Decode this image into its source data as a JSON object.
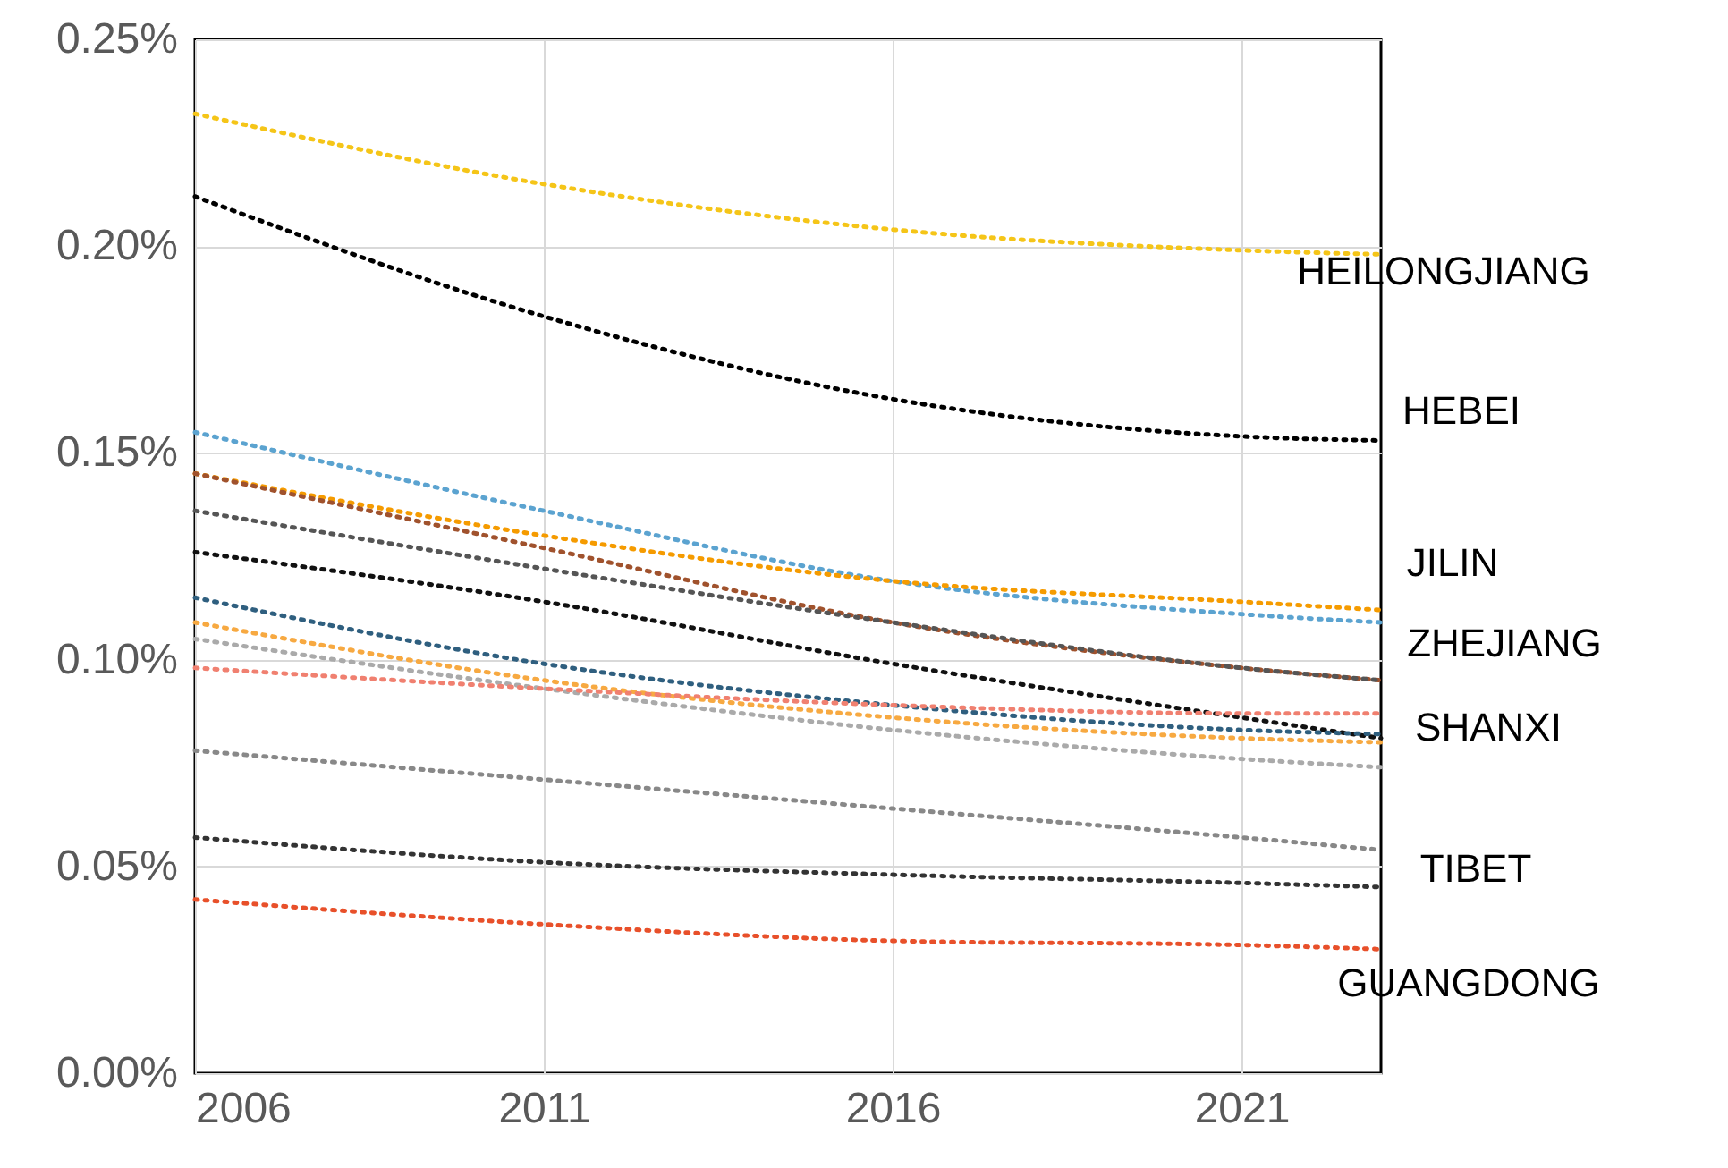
{
  "chart_data": {
    "type": "line",
    "line_style": "dotted",
    "marker": "none",
    "grid": true,
    "legend": false,
    "x": [
      2006,
      2011,
      2016,
      2021,
      2023
    ],
    "xlim": [
      2006,
      2023
    ],
    "xticks": [
      2006,
      2011,
      2016,
      2021
    ],
    "ylim": [
      0,
      0.25
    ],
    "yticks": [
      {
        "value": 0,
        "label": "0.00%"
      },
      {
        "value": 0.05,
        "label": "0.05%"
      },
      {
        "value": 0.1,
        "label": "0.10%"
      },
      {
        "value": 0.15,
        "label": "0.15%"
      },
      {
        "value": 0.2,
        "label": "0.20%"
      },
      {
        "value": 0.25,
        "label": "0.25%"
      }
    ],
    "series": [
      {
        "color": "#f5c518",
        "values": [
          0.232,
          0.215,
          0.204,
          0.199,
          0.198
        ]
      },
      {
        "color": "#000000",
        "values": [
          0.212,
          0.183,
          0.163,
          0.154,
          0.153
        ]
      },
      {
        "color": "#5ba3d0",
        "values": [
          0.155,
          0.136,
          0.119,
          0.111,
          0.109
        ]
      },
      {
        "color": "#f59b00",
        "values": [
          0.145,
          0.13,
          0.119,
          0.114,
          0.112
        ]
      },
      {
        "color": "#a0522d",
        "values": [
          0.145,
          0.127,
          0.109,
          0.098,
          0.095
        ]
      },
      {
        "color": "#555555",
        "values": [
          0.136,
          0.122,
          0.109,
          0.098,
          0.095
        ]
      },
      {
        "color": "#111111",
        "values": [
          0.126,
          0.114,
          0.099,
          0.086,
          0.081
        ]
      },
      {
        "color": "#2f5f7f",
        "values": [
          0.115,
          0.099,
          0.089,
          0.083,
          0.082
        ]
      },
      {
        "color": "#f7a941",
        "values": [
          0.109,
          0.095,
          0.086,
          0.081,
          0.08
        ]
      },
      {
        "color": "#aaaaaa",
        "values": [
          0.105,
          0.093,
          0.083,
          0.076,
          0.074
        ]
      },
      {
        "color": "#f08070",
        "values": [
          0.098,
          0.093,
          0.089,
          0.087,
          0.087
        ]
      },
      {
        "color": "#888888",
        "values": [
          0.078,
          0.071,
          0.064,
          0.057,
          0.054
        ]
      },
      {
        "color": "#333333",
        "values": [
          0.057,
          0.051,
          0.048,
          0.046,
          0.045
        ]
      },
      {
        "color": "#e8502a",
        "values": [
          0.042,
          0.036,
          0.032,
          0.031,
          0.03
        ]
      }
    ],
    "annotations": [
      "HEILONGJIANG",
      "HEBEI",
      "JILIN",
      "ZHEJIANG",
      "SHANXI",
      "TIBET",
      "GUANGDONG"
    ]
  }
}
